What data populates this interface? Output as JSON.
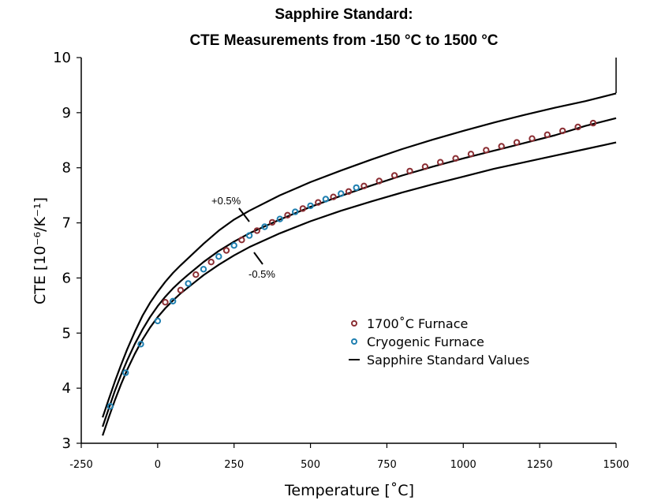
{
  "chart_data": {
    "type": "line",
    "title": "Sapphire Standard:",
    "subtitle": "CTE Measurements from -150 °C to 1500 °C",
    "xlabel": "Temperature [˚C]",
    "ylabel": "CTE [10⁻⁶/K⁻¹]",
    "xlim": [
      -250,
      1500
    ],
    "ylim": [
      3,
      10
    ],
    "xticks": [
      "-250",
      "0",
      "250",
      "500",
      "750",
      "1000",
      "1250",
      "1500"
    ],
    "yticks": [
      "3",
      "4",
      "5",
      "6",
      "7",
      "8",
      "9",
      "10"
    ],
    "grid": false,
    "legend_position": "center-right",
    "annotations": [
      "+0.5%",
      "-0.5%"
    ],
    "series": [
      {
        "name": "Sapphire Standard Values",
        "kind": "line",
        "color": "#000000",
        "x": [
          -180,
          -160,
          -140,
          -120,
          -100,
          -75,
          -50,
          -25,
          0,
          25,
          50,
          75,
          100,
          150,
          200,
          250,
          300,
          400,
          500,
          600,
          700,
          800,
          900,
          1000,
          1100,
          1200,
          1300,
          1400,
          1500
        ],
        "y": [
          3.3,
          3.63,
          3.95,
          4.24,
          4.5,
          4.8,
          5.06,
          5.29,
          5.49,
          5.66,
          5.81,
          5.94,
          6.06,
          6.29,
          6.49,
          6.66,
          6.81,
          7.06,
          7.29,
          7.49,
          7.68,
          7.86,
          8.02,
          8.17,
          8.31,
          8.45,
          8.59,
          8.76,
          8.9
        ]
      },
      {
        "name": "+0.5%",
        "kind": "line",
        "color": "#000000",
        "x": [
          -180,
          -160,
          -140,
          -120,
          -100,
          -75,
          -50,
          -25,
          0,
          25,
          50,
          75,
          100,
          150,
          200,
          250,
          300,
          400,
          500,
          600,
          700,
          800,
          900,
          1000,
          1100,
          1200,
          1300,
          1400,
          1500
        ],
        "y": [
          3.47,
          3.8,
          4.12,
          4.42,
          4.7,
          5.02,
          5.31,
          5.55,
          5.75,
          5.93,
          6.09,
          6.23,
          6.36,
          6.62,
          6.86,
          7.06,
          7.22,
          7.5,
          7.74,
          7.95,
          8.15,
          8.34,
          8.51,
          8.67,
          8.82,
          8.96,
          9.09,
          9.21,
          9.35
        ]
      },
      {
        "name": "-0.5%",
        "kind": "line",
        "color": "#000000",
        "x": [
          -180,
          -160,
          -140,
          -120,
          -100,
          -75,
          -50,
          -25,
          0,
          25,
          50,
          75,
          100,
          150,
          200,
          250,
          300,
          400,
          500,
          600,
          700,
          800,
          900,
          1000,
          1100,
          1200,
          1300,
          1400,
          1500
        ],
        "y": [
          3.14,
          3.47,
          3.78,
          4.07,
          4.33,
          4.62,
          4.88,
          5.1,
          5.29,
          5.45,
          5.59,
          5.72,
          5.83,
          6.05,
          6.24,
          6.41,
          6.56,
          6.81,
          7.03,
          7.22,
          7.39,
          7.55,
          7.7,
          7.84,
          7.98,
          8.1,
          8.22,
          8.34,
          8.46
        ]
      },
      {
        "name": "1700˚C Furnace",
        "kind": "scatter",
        "color": "#8b2e33",
        "x": [
          25,
          75,
          125,
          175,
          225,
          275,
          325,
          375,
          425,
          475,
          525,
          575,
          625,
          675,
          725,
          775,
          825,
          875,
          925,
          975,
          1025,
          1075,
          1125,
          1175,
          1225,
          1275,
          1325,
          1375,
          1425
        ],
        "y": [
          5.56,
          5.78,
          6.06,
          6.29,
          6.5,
          6.69,
          6.86,
          7.01,
          7.14,
          7.26,
          7.37,
          7.47,
          7.57,
          7.67,
          7.76,
          7.86,
          7.94,
          8.02,
          8.1,
          8.17,
          8.25,
          8.32,
          8.39,
          8.46,
          8.53,
          8.6,
          8.67,
          8.74,
          8.81
        ]
      },
      {
        "name": "Cryogenic Furnace",
        "kind": "scatter",
        "color": "#1f7fb0",
        "x": [
          -155,
          -105,
          -55,
          0,
          50,
          100,
          150,
          200,
          250,
          300,
          350,
          400,
          450,
          500,
          550,
          600,
          650
        ],
        "y": [
          3.67,
          4.28,
          4.8,
          5.22,
          5.58,
          5.9,
          6.16,
          6.39,
          6.59,
          6.77,
          6.93,
          7.07,
          7.2,
          7.31,
          7.43,
          7.53,
          7.64
        ]
      }
    ]
  }
}
